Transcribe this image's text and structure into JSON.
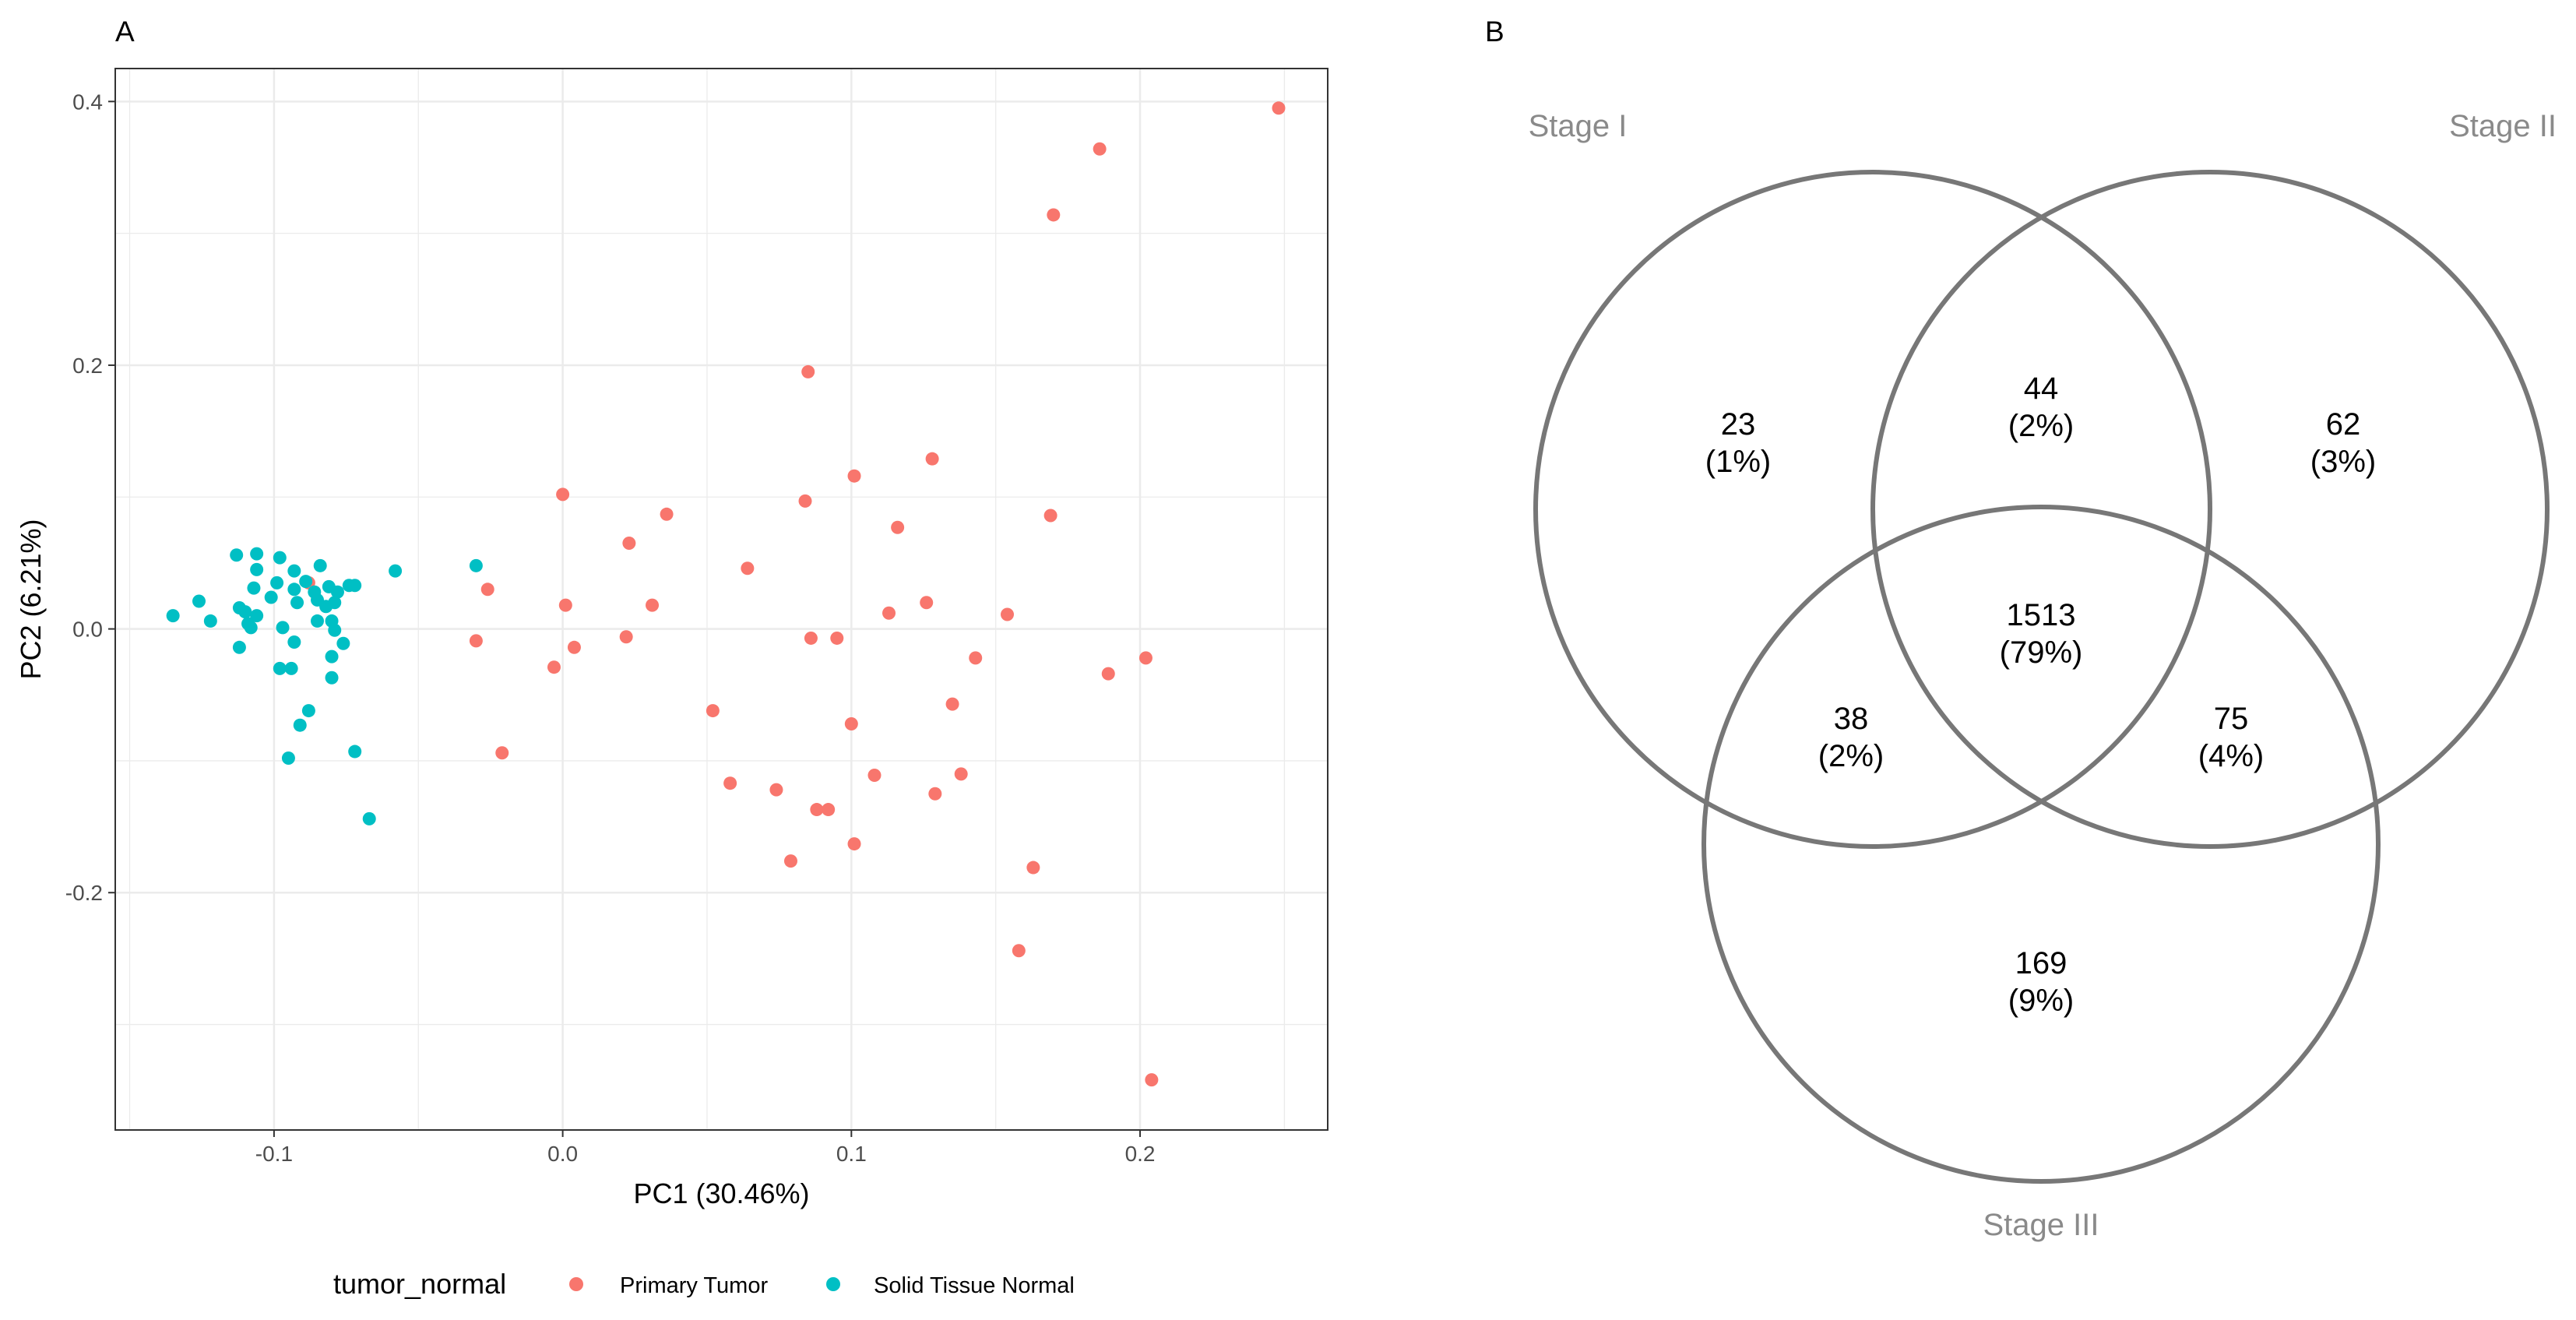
{
  "panels": {
    "a_label": "A",
    "b_label": "B"
  },
  "chart_data": [
    {
      "type": "scatter",
      "panel": "A",
      "xlabel": "PC1 (30.46%)",
      "ylabel": "PC2 (6.21%)",
      "xlim": [
        -0.155,
        0.265
      ],
      "ylim": [
        -0.38,
        0.425
      ],
      "x_ticks": [
        -0.1,
        0.0,
        0.1,
        0.2
      ],
      "x_tick_labels": [
        "-0.1",
        "0.0",
        "0.1",
        "0.2"
      ],
      "y_ticks": [
        -0.2,
        0.0,
        0.2,
        0.4
      ],
      "y_tick_labels": [
        "-0.2",
        "0.0",
        "0.2",
        "0.4"
      ],
      "grid": true,
      "legend": {
        "title": "tumor_normal",
        "placement": "bottom"
      },
      "series": [
        {
          "name": "Primary Tumor",
          "color": "#F8766D",
          "points": [
            [
              0.248,
              0.395
            ],
            [
              0.186,
              0.364
            ],
            [
              0.17,
              0.314
            ],
            [
              0.085,
              0.195
            ],
            [
              0.128,
              0.129
            ],
            [
              0.101,
              0.116
            ],
            [
              0.0,
              0.102
            ],
            [
              0.084,
              0.097
            ],
            [
              0.036,
              0.087
            ],
            [
              0.169,
              0.086
            ],
            [
              0.116,
              0.077
            ],
            [
              0.023,
              0.065
            ],
            [
              0.064,
              0.046
            ],
            [
              -0.088,
              0.035
            ],
            [
              -0.026,
              0.03
            ],
            [
              0.126,
              0.02
            ],
            [
              0.001,
              0.018
            ],
            [
              0.031,
              0.018
            ],
            [
              0.113,
              0.012
            ],
            [
              0.154,
              0.011
            ],
            [
              -0.03,
              -0.009
            ],
            [
              0.022,
              -0.006
            ],
            [
              0.004,
              -0.014
            ],
            [
              0.086,
              -0.007
            ],
            [
              0.095,
              -0.007
            ],
            [
              0.143,
              -0.022
            ],
            [
              0.202,
              -0.022
            ],
            [
              -0.003,
              -0.029
            ],
            [
              0.189,
              -0.034
            ],
            [
              0.052,
              -0.062
            ],
            [
              0.135,
              -0.057
            ],
            [
              0.1,
              -0.072
            ],
            [
              -0.021,
              -0.094
            ],
            [
              0.108,
              -0.111
            ],
            [
              0.138,
              -0.11
            ],
            [
              0.058,
              -0.117
            ],
            [
              0.074,
              -0.122
            ],
            [
              0.129,
              -0.125
            ],
            [
              0.088,
              -0.137
            ],
            [
              0.092,
              -0.137
            ],
            [
              0.101,
              -0.163
            ],
            [
              0.079,
              -0.176
            ],
            [
              0.163,
              -0.181
            ],
            [
              0.158,
              -0.244
            ],
            [
              0.204,
              -0.342
            ]
          ]
        },
        {
          "name": "Solid Tissue Normal",
          "color": "#00BFC4",
          "points": [
            [
              -0.106,
              0.057
            ],
            [
              -0.113,
              0.056
            ],
            [
              -0.098,
              0.054
            ],
            [
              -0.106,
              0.045
            ],
            [
              -0.093,
              0.044
            ],
            [
              -0.084,
              0.048
            ],
            [
              -0.058,
              0.044
            ],
            [
              -0.03,
              0.048
            ],
            [
              -0.099,
              0.035
            ],
            [
              -0.089,
              0.036
            ],
            [
              -0.081,
              0.032
            ],
            [
              -0.072,
              0.033
            ],
            [
              -0.074,
              0.033
            ],
            [
              -0.107,
              0.031
            ],
            [
              -0.093,
              0.03
            ],
            [
              -0.086,
              0.028
            ],
            [
              -0.078,
              0.028
            ],
            [
              -0.085,
              0.022
            ],
            [
              -0.101,
              0.024
            ],
            [
              -0.112,
              0.016
            ],
            [
              -0.11,
              0.013
            ],
            [
              -0.092,
              0.02
            ],
            [
              -0.082,
              0.017
            ],
            [
              -0.079,
              0.02
            ],
            [
              -0.106,
              0.01
            ],
            [
              -0.126,
              0.021
            ],
            [
              -0.135,
              0.01
            ],
            [
              -0.122,
              0.006
            ],
            [
              -0.109,
              0.004
            ],
            [
              -0.085,
              0.006
            ],
            [
              -0.08,
              0.006
            ],
            [
              -0.097,
              0.001
            ],
            [
              -0.108,
              0.001
            ],
            [
              -0.079,
              -0.001
            ],
            [
              -0.076,
              -0.011
            ],
            [
              -0.093,
              -0.01
            ],
            [
              -0.112,
              -0.014
            ],
            [
              -0.08,
              -0.021
            ],
            [
              -0.098,
              -0.03
            ],
            [
              -0.094,
              -0.03
            ],
            [
              -0.08,
              -0.037
            ],
            [
              -0.088,
              -0.062
            ],
            [
              -0.091,
              -0.073
            ],
            [
              -0.072,
              -0.093
            ],
            [
              -0.095,
              -0.098
            ],
            [
              -0.067,
              -0.144
            ]
          ]
        }
      ]
    },
    {
      "type": "venn",
      "panel": "B",
      "sets": [
        "Stage I",
        "Stage II",
        "Stage III"
      ],
      "regions": [
        {
          "sets": [
            "Stage I"
          ],
          "count": "23",
          "percent": "(1%)"
        },
        {
          "sets": [
            "Stage II"
          ],
          "count": "62",
          "percent": "(3%)"
        },
        {
          "sets": [
            "Stage III"
          ],
          "count": "169",
          "percent": "(9%)"
        },
        {
          "sets": [
            "Stage I",
            "Stage II"
          ],
          "count": "44",
          "percent": "(2%)"
        },
        {
          "sets": [
            "Stage I",
            "Stage III"
          ],
          "count": "38",
          "percent": "(2%)"
        },
        {
          "sets": [
            "Stage II",
            "Stage III"
          ],
          "count": "75",
          "percent": "(4%)"
        },
        {
          "sets": [
            "Stage I",
            "Stage II",
            "Stage III"
          ],
          "count": "1513",
          "percent": "(79%)"
        }
      ],
      "circle_color": "#777777"
    }
  ]
}
